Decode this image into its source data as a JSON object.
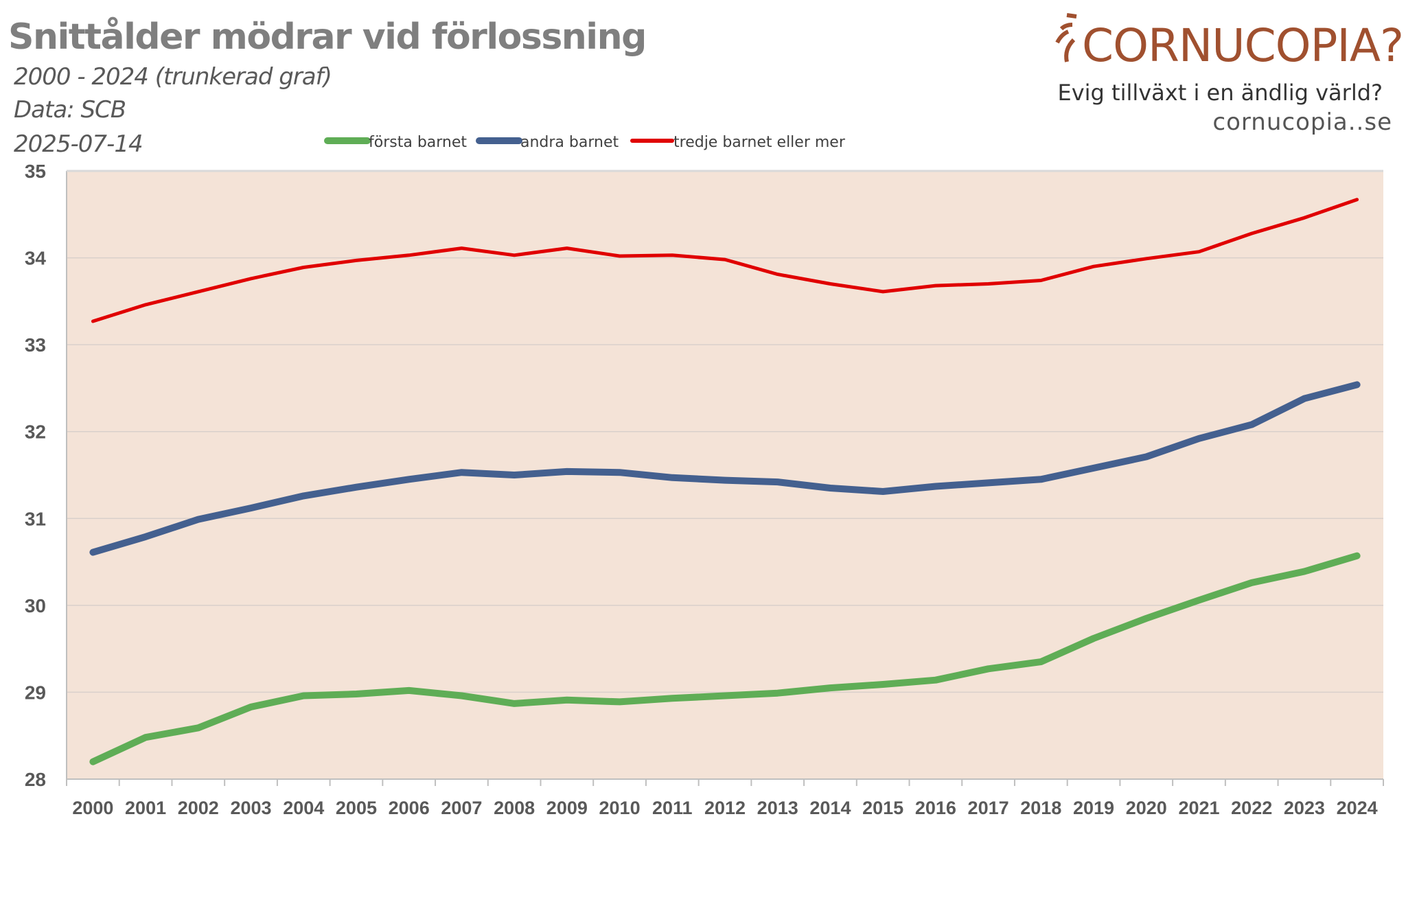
{
  "header": {
    "title": "Snittålder mödrar vid förlossning",
    "subtitle": "2000 - 2024 (trunkerad graf)",
    "source": "Data: SCB",
    "date": "2025-07-14"
  },
  "logo": {
    "brand": "CORNUCOPIA?",
    "tagline": "Evig tillväxt i en ändlig värld?",
    "site": "cornucopia..se"
  },
  "chart_data": {
    "type": "line",
    "title": "Snittålder mödrar vid förlossning",
    "xlabel": "",
    "ylabel": "",
    "ylim": [
      28,
      35
    ],
    "yticks": [
      "28",
      "29",
      "30",
      "31",
      "32",
      "33",
      "34",
      "35"
    ],
    "grid": true,
    "legend": "top-center",
    "background": "#f4e3d7",
    "x": [
      "2000",
      "2001",
      "2002",
      "2003",
      "2004",
      "2005",
      "2006",
      "2007",
      "2008",
      "2009",
      "2010",
      "2011",
      "2012",
      "2013",
      "2014",
      "2015",
      "2016",
      "2017",
      "2018",
      "2019",
      "2020",
      "2021",
      "2022",
      "2023",
      "2024"
    ],
    "series": [
      {
        "name": "första barnet",
        "color": "#5fad56",
        "width": 10,
        "values": [
          28.2,
          28.48,
          28.59,
          28.83,
          28.96,
          28.98,
          29.02,
          28.96,
          28.87,
          28.91,
          28.89,
          28.93,
          28.96,
          28.99,
          29.05,
          29.09,
          29.14,
          29.27,
          29.35,
          29.62,
          29.85,
          30.06,
          30.26,
          30.39,
          30.57
        ]
      },
      {
        "name": "andra barnet",
        "color": "#44608f",
        "width": 10,
        "values": [
          30.61,
          30.79,
          30.99,
          31.12,
          31.26,
          31.36,
          31.45,
          31.53,
          31.5,
          31.54,
          31.53,
          31.47,
          31.44,
          31.42,
          31.35,
          31.31,
          31.37,
          31.41,
          31.45,
          31.58,
          31.71,
          31.92,
          32.08,
          32.38,
          32.54
        ]
      },
      {
        "name": "tredje barnet eller mer",
        "color": "#e00000",
        "width": 5,
        "values": [
          33.27,
          33.46,
          33.61,
          33.76,
          33.89,
          33.97,
          34.03,
          34.11,
          34.03,
          34.11,
          34.02,
          34.03,
          33.98,
          33.81,
          33.7,
          33.61,
          33.68,
          33.7,
          33.74,
          33.9,
          33.99,
          34.07,
          34.28,
          34.46,
          34.67
        ]
      }
    ]
  }
}
